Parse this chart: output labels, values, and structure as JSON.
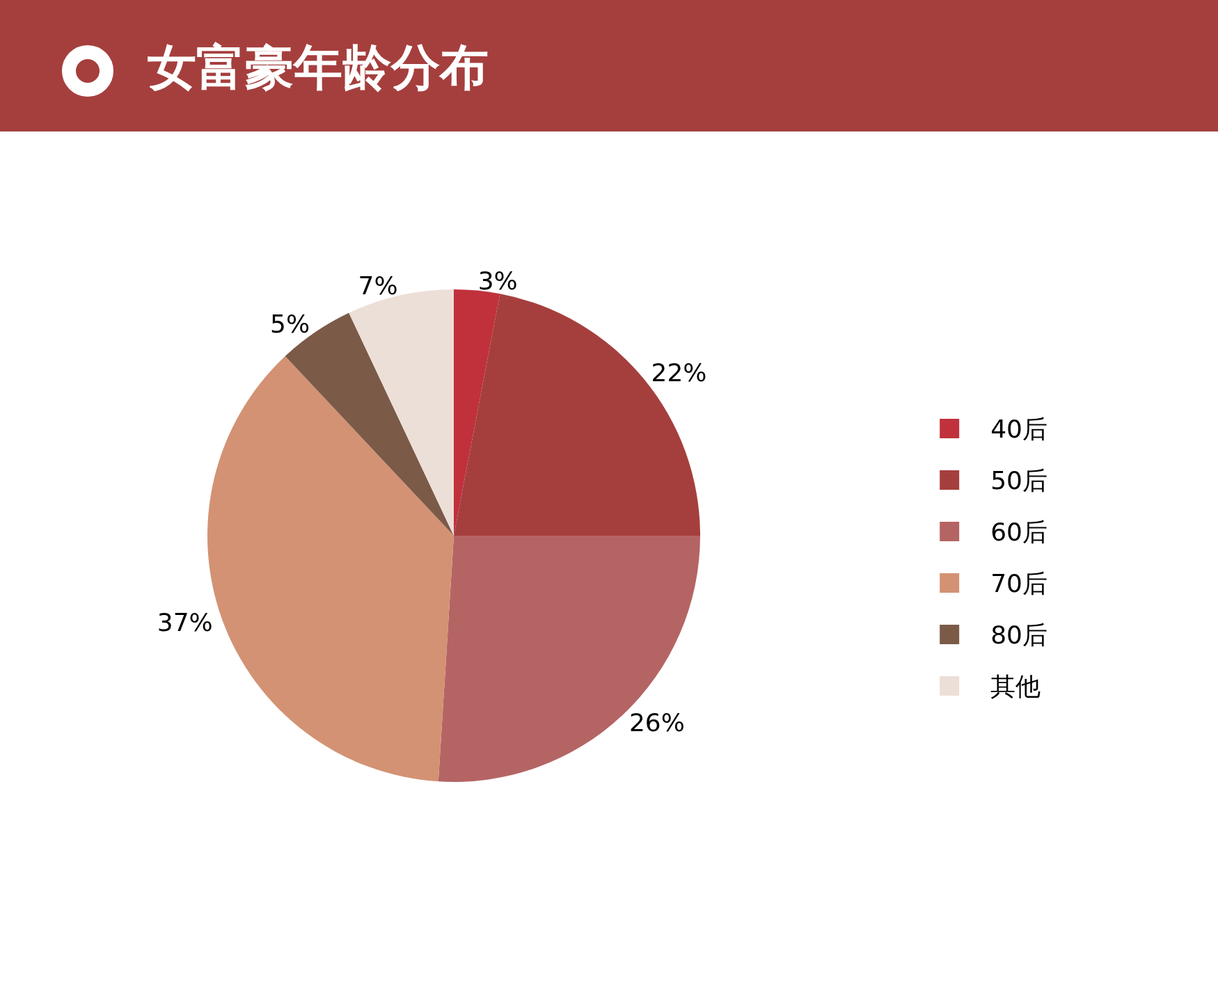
{
  "chart_data": {
    "type": "pie",
    "title": "女富豪年龄分布",
    "categories": [
      "40后",
      "50后",
      "60后",
      "70后",
      "80后",
      "其他"
    ],
    "values": [
      3,
      22,
      26,
      37,
      5,
      7
    ],
    "colors": [
      "#c0313c",
      "#a53f3d",
      "#b56464",
      "#d39273",
      "#7b5a48",
      "#ecdfd7"
    ],
    "value_labels": [
      "3%",
      "22%",
      "26%",
      "37%",
      "5%",
      "7%"
    ],
    "legend": "right"
  }
}
